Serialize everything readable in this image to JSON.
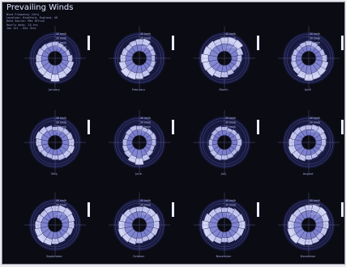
{
  "title": "Prevailing Winds",
  "info_lines": [
    "Wind Frequency (Hrs)",
    "Location: Bradford, England, UK",
    "Data Source: Met Office",
    "Hourly data, 24 hrs",
    "Jan 1st - Dec 31st"
  ],
  "colors": {
    "background": "#0b0b14",
    "grid": "#7c82b8",
    "petal_low": "#3a3fb0",
    "petal_high": "#e8e9ff",
    "legend_bar": "#e9ecff"
  },
  "chart_data": {
    "type": "polar",
    "description_axis": "wind direction vs speed frequency",
    "ring_labels": [
      "40 km/h",
      "30 km/h",
      "20 km/h",
      "10 km/h"
    ],
    "directions": 16,
    "months": [
      {
        "name": "January",
        "values": [
          0.55,
          0.5,
          0.45,
          0.5,
          0.6,
          0.7,
          0.75,
          0.8,
          0.95,
          0.85,
          0.8,
          0.75,
          0.7,
          0.65,
          0.6,
          0.55
        ]
      },
      {
        "name": "February",
        "values": [
          0.7,
          0.75,
          0.6,
          0.55,
          0.5,
          0.55,
          0.6,
          0.7,
          0.8,
          0.85,
          0.9,
          0.8,
          0.7,
          0.65,
          0.6,
          0.65
        ]
      },
      {
        "name": "March",
        "values": [
          0.8,
          0.85,
          0.9,
          0.7,
          0.6,
          0.55,
          0.5,
          0.6,
          0.7,
          0.75,
          0.85,
          0.9,
          0.95,
          0.85,
          0.8,
          0.75
        ]
      },
      {
        "name": "April",
        "values": [
          0.6,
          0.55,
          0.5,
          0.55,
          0.65,
          0.75,
          0.8,
          0.85,
          0.9,
          0.8,
          0.7,
          0.65,
          0.6,
          0.55,
          0.5,
          0.55
        ]
      },
      {
        "name": "May",
        "values": [
          0.5,
          0.55,
          0.6,
          0.65,
          0.7,
          0.75,
          0.7,
          0.65,
          0.6,
          0.55,
          0.6,
          0.65,
          0.7,
          0.75,
          0.7,
          0.6
        ]
      },
      {
        "name": "June",
        "values": [
          0.55,
          0.5,
          0.55,
          0.6,
          0.55,
          0.5,
          0.55,
          0.7,
          0.9,
          0.8,
          0.65,
          0.6,
          0.55,
          0.5,
          0.55,
          0.6
        ]
      },
      {
        "name": "July",
        "values": [
          0.5,
          0.45,
          0.5,
          0.55,
          0.6,
          0.55,
          0.5,
          0.55,
          0.6,
          0.65,
          0.6,
          0.55,
          0.5,
          0.45,
          0.5,
          0.55
        ]
      },
      {
        "name": "August",
        "values": [
          0.6,
          0.65,
          0.7,
          0.65,
          0.6,
          0.55,
          0.5,
          0.55,
          0.6,
          0.7,
          0.75,
          0.8,
          0.75,
          0.7,
          0.65,
          0.6
        ]
      },
      {
        "name": "September",
        "values": [
          0.7,
          0.75,
          0.8,
          0.75,
          0.7,
          0.65,
          0.6,
          0.65,
          0.7,
          0.8,
          0.85,
          0.8,
          0.75,
          0.7,
          0.65,
          0.7
        ]
      },
      {
        "name": "October",
        "values": [
          0.65,
          0.7,
          0.75,
          0.8,
          0.75,
          0.7,
          0.65,
          0.6,
          0.65,
          0.75,
          0.8,
          0.85,
          0.8,
          0.75,
          0.7,
          0.65
        ]
      },
      {
        "name": "November",
        "values": [
          0.6,
          0.65,
          0.7,
          0.75,
          0.8,
          0.75,
          0.7,
          0.65,
          0.6,
          0.7,
          0.8,
          0.85,
          0.9,
          0.8,
          0.7,
          0.65
        ]
      },
      {
        "name": "December",
        "values": [
          0.75,
          0.8,
          0.85,
          0.8,
          0.75,
          0.7,
          0.65,
          0.7,
          0.75,
          0.8,
          0.9,
          0.85,
          0.8,
          0.75,
          0.7,
          0.72
        ]
      }
    ]
  }
}
